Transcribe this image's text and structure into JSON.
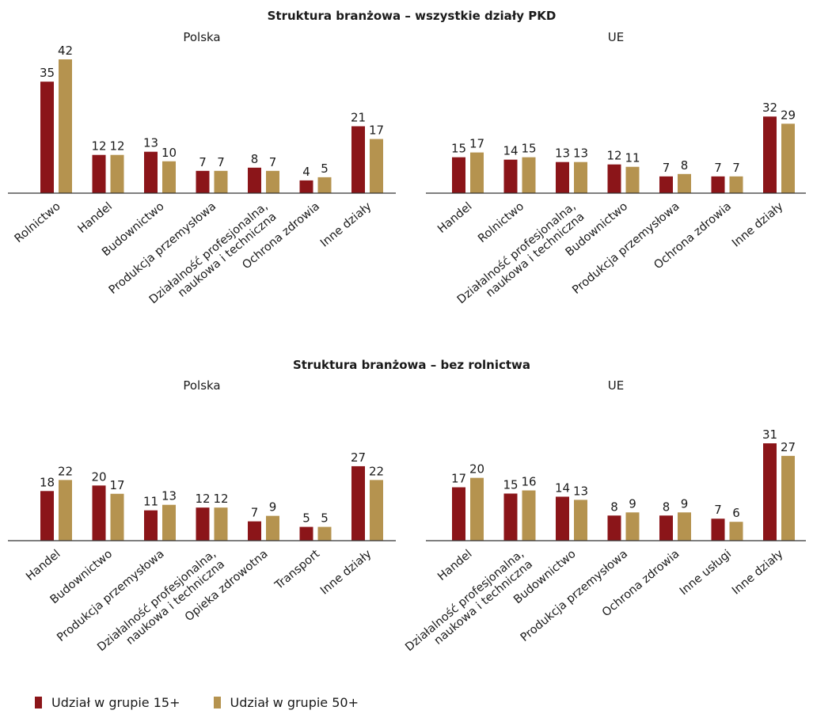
{
  "colors": {
    "group15": "#8b1519",
    "group50": "#b5934f",
    "axis": "#333333",
    "text": "#1a1a1a"
  },
  "sections": [
    {
      "title": "Struktura branżowa – wszystkie działy PKD"
    },
    {
      "title": "Struktura branżowa – bez rolnictwa"
    }
  ],
  "legend": [
    {
      "label": "Udział w grupie 15+",
      "color": "#8b1519"
    },
    {
      "label": "Udział w grupie 50+",
      "color": "#b5934f"
    }
  ],
  "chart_data": [
    {
      "type": "bar",
      "title": "Polska",
      "categories": [
        "Rolnictwo",
        "Handel",
        "Budownictwo",
        "Produkcja przemysłowa",
        "Działalność profesjonalna,\nnaukowa i techniczna",
        "Ochrona zdrowia",
        "Inne działy"
      ],
      "series": [
        {
          "name": "Udział w grupie 15+",
          "values": [
            35,
            12,
            13,
            7,
            8,
            4,
            21
          ]
        },
        {
          "name": "Udział w grupie 50+",
          "values": [
            42,
            12,
            10,
            7,
            7,
            5,
            17
          ]
        }
      ],
      "ylim": [
        0,
        42
      ],
      "data_labels": true,
      "grid": false
    },
    {
      "type": "bar",
      "title": "UE",
      "categories": [
        "Handel",
        "Rolnictwo",
        "Działalność profesjonalna,\nnaukowa i techniczna",
        "Budownictwo",
        "Produkcja przemysłowa",
        "Ochrona zdrowia",
        "Inne działy"
      ],
      "series": [
        {
          "name": "Udział w grupie 15+",
          "values": [
            15,
            14,
            13,
            12,
            7,
            7,
            32
          ]
        },
        {
          "name": "Udział w grupie 50+",
          "values": [
            17,
            15,
            13,
            11,
            8,
            7,
            29
          ]
        }
      ],
      "ylim": [
        0,
        42
      ],
      "data_labels": true,
      "grid": false
    },
    {
      "type": "bar",
      "title": "Polska",
      "categories": [
        "Handel",
        "Budownictwo",
        "Produkcja przemysłowa",
        "Działalność profesjonalna,\nnaukowa i techniczna",
        "Opieka zdrowotna",
        "Transport",
        "Inne działy"
      ],
      "series": [
        {
          "name": "Udział w grupie 15+",
          "values": [
            18,
            20,
            11,
            12,
            7,
            5,
            27
          ]
        },
        {
          "name": "Udział w grupie 50+",
          "values": [
            22,
            17,
            13,
            12,
            9,
            5,
            22
          ]
        }
      ],
      "ylim": [
        0,
        31
      ],
      "data_labels": true,
      "grid": false
    },
    {
      "type": "bar",
      "title": "UE",
      "categories": [
        "Handel",
        "Działalność profesjonalna,\nnaukowa i techniczna",
        "Budownictwo",
        "Produkcja przemysłowa",
        "Ochrona zdrowia",
        "Inne usługi",
        "Inne działy"
      ],
      "series": [
        {
          "name": "Udział w grupie 15+",
          "values": [
            17,
            15,
            14,
            8,
            8,
            7,
            31
          ]
        },
        {
          "name": "Udział w grupie 50+",
          "values": [
            20,
            16,
            13,
            9,
            9,
            6,
            27
          ]
        }
      ],
      "ylim": [
        0,
        31
      ],
      "data_labels": true,
      "grid": false
    }
  ]
}
